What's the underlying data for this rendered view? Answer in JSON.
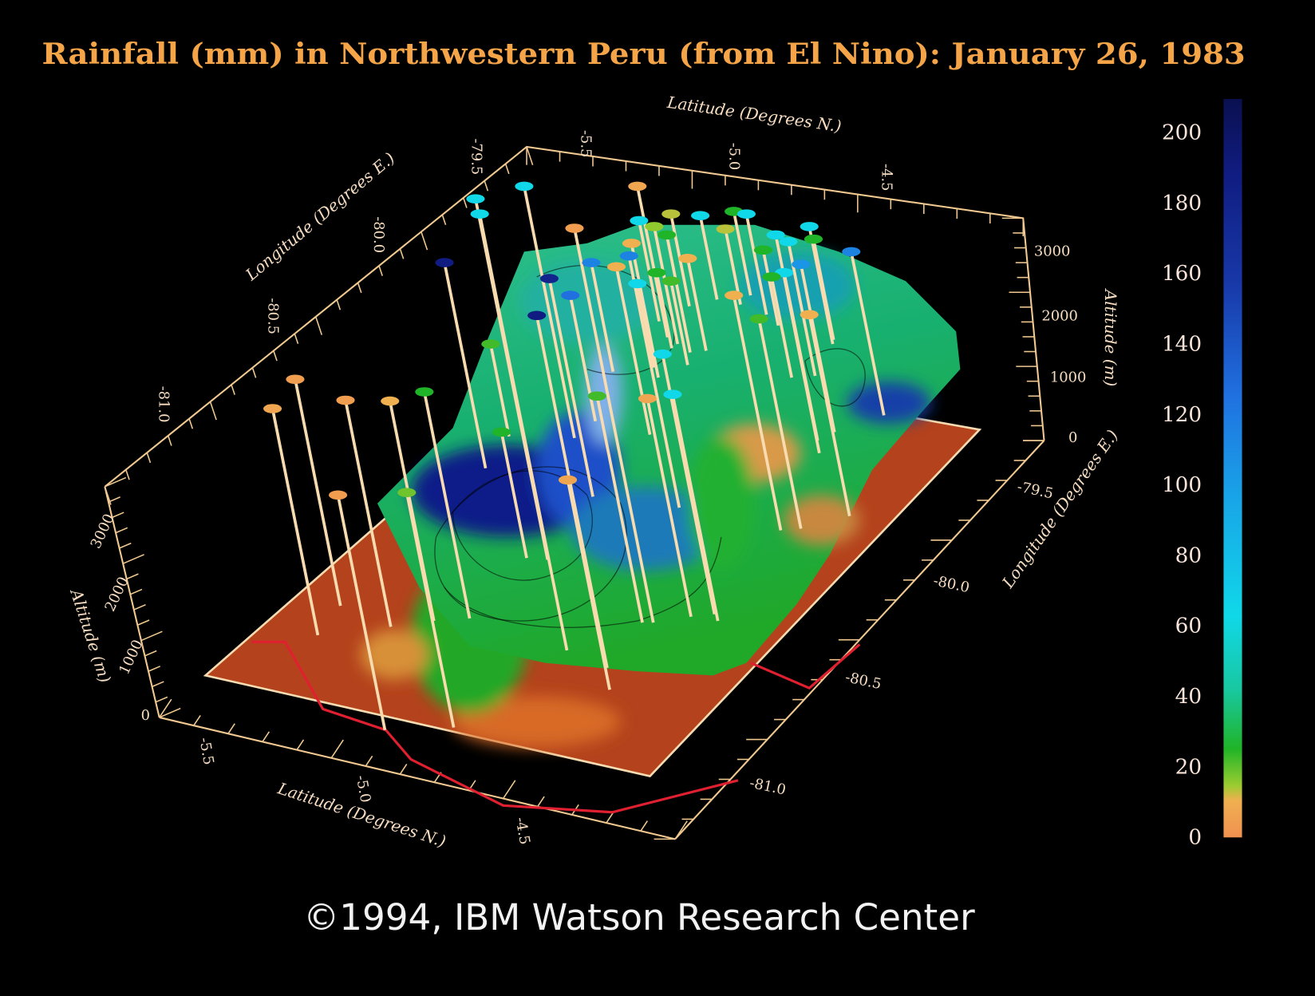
{
  "chart_data": {
    "type": "3d-surface",
    "title": "Rainfall (mm) in Northwestern Peru (from El Nino): January 26, 1983",
    "axes": {
      "latitude": {
        "label": "Latitude (Degrees N.)",
        "ticks": [
          "-5.5",
          "-5.0",
          "-4.5"
        ]
      },
      "longitude": {
        "label": "Longitude (Degrees E.)",
        "ticks_back": [
          "-81.0",
          "-80.5",
          "-80.0",
          "-79.5"
        ],
        "ticks_front": [
          "-79.5",
          "-80.0",
          "-80.5",
          "-81.0"
        ]
      },
      "altitude": {
        "label": "Altitude (m)",
        "ticks": [
          "0",
          "1000",
          "2000",
          "3000"
        ],
        "range": [
          0,
          3000
        ]
      }
    },
    "colorbar": {
      "label_values": [
        "200",
        "180",
        "160",
        "140",
        "120",
        "100",
        "80",
        "60",
        "40",
        "20",
        "0"
      ],
      "range": [
        0,
        200
      ],
      "colors": [
        "#f0a050",
        "#b8c830",
        "#20b020",
        "#10c8a0",
        "#10d0e8",
        "#1aa8e8",
        "#2070e0",
        "#1840b0",
        "#101e80",
        "#0a1050"
      ]
    },
    "station_rainfall_mm": [
      5,
      2,
      2,
      8,
      25,
      2,
      18,
      60,
      60,
      60,
      180,
      25,
      22,
      170,
      180,
      120,
      2,
      110,
      5,
      8,
      110,
      8,
      5,
      60,
      15,
      12,
      25,
      25,
      60,
      22,
      8,
      60,
      12,
      25,
      60,
      8,
      22,
      60,
      60,
      60,
      25,
      100,
      110,
      8,
      60,
      5,
      60,
      22,
      25,
      25,
      60
    ],
    "coastline_color": "#e02030"
  },
  "footer": {
    "copyright": "©1994, IBM Watson Research Center"
  }
}
